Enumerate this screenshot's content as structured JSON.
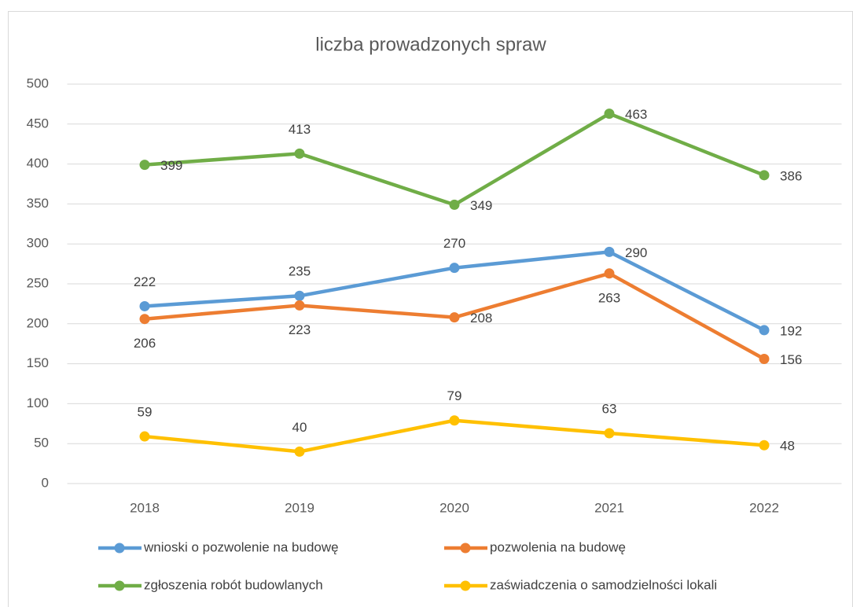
{
  "chart_data": {
    "type": "line",
    "title": "liczba prowadzonych spraw",
    "categories": [
      "2018",
      "2019",
      "2020",
      "2021",
      "2022"
    ],
    "series": [
      {
        "name": "wnioski o pozwolenie na budowę",
        "color": "#5b9bd5",
        "values": [
          222,
          235,
          270,
          290,
          192
        ]
      },
      {
        "name": "pozwolenia na budowę",
        "color": "#ed7d31",
        "values": [
          206,
          223,
          208,
          263,
          156
        ]
      },
      {
        "name": "zgłoszenia robót budowlanych",
        "color": "#70ad47",
        "values": [
          399,
          413,
          349,
          463,
          386
        ]
      },
      {
        "name": "zaświadczenia o samodzielności lokali",
        "color": "#ffc000",
        "values": [
          59,
          40,
          79,
          63,
          48
        ]
      }
    ],
    "ylim": [
      0,
      500
    ],
    "yticks": [
      0,
      50,
      100,
      150,
      200,
      250,
      300,
      350,
      400,
      450,
      500
    ],
    "grid": true,
    "legend": "bottom"
  }
}
